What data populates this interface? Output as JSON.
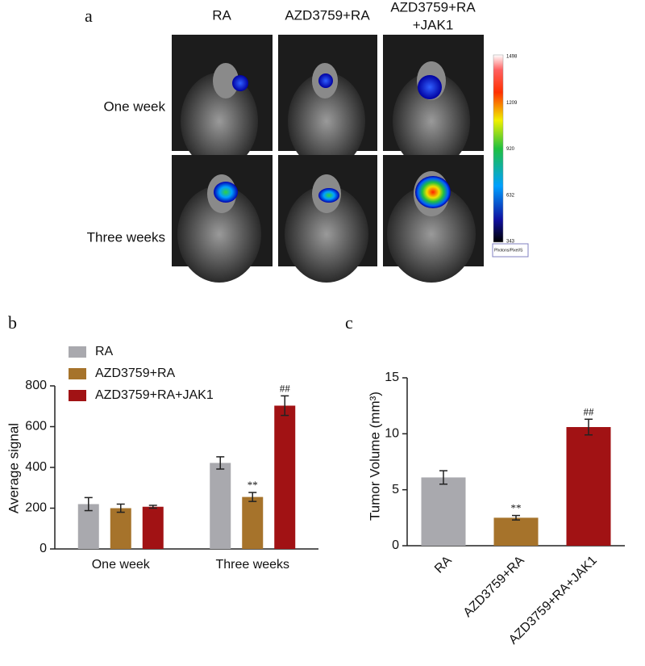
{
  "panel_a": {
    "label": "a",
    "headers": [
      [
        "RA"
      ],
      [
        "AZD3759+RA"
      ],
      [
        "AZD3759+RA",
        "+JAK1"
      ]
    ],
    "rows": [
      "One week",
      "Three weeks"
    ],
    "colorbar": {
      "ticks": [
        "1498",
        "1209",
        "920",
        "632",
        "343"
      ],
      "unit": "Photons/Pixel/S"
    }
  },
  "chart_data": [
    {
      "type": "grouped-bar",
      "panel_label": "b",
      "y_label": "Average signal",
      "categories": [
        "One week",
        "Three weeks"
      ],
      "series": [
        {
          "name": "RA",
          "color": "#a9a9ae",
          "values": [
            220,
            422
          ],
          "errors": [
            32,
            30
          ],
          "markers": [
            null,
            null
          ]
        },
        {
          "name": "AZD3759+RA",
          "color": "#a6732b",
          "values": [
            200,
            255
          ],
          "errors": [
            20,
            22
          ],
          "markers": [
            null,
            "**"
          ]
        },
        {
          "name": "AZD3759+RA+JAK1",
          "color": "#a11214",
          "values": [
            207,
            703
          ],
          "errors": [
            7,
            48
          ],
          "markers": [
            null,
            "##"
          ]
        }
      ],
      "ylim": [
        0,
        800
      ],
      "yticks": [
        0,
        200,
        400,
        600,
        800
      ]
    },
    {
      "type": "bar",
      "panel_label": "c",
      "y_label": "Tumor Volume (mm³)",
      "categories": [
        "RA",
        "AZD3759+RA",
        "AZD3759+RA+JAK1"
      ],
      "values": [
        6.1,
        2.5,
        10.6
      ],
      "errors": [
        0.6,
        0.2,
        0.7
      ],
      "markers": [
        null,
        "**",
        "##"
      ],
      "colors": [
        "#a9a9ae",
        "#a6732b",
        "#a11214"
      ],
      "ylim": [
        0,
        15
      ],
      "yticks": [
        0,
        5,
        10,
        15
      ]
    }
  ]
}
